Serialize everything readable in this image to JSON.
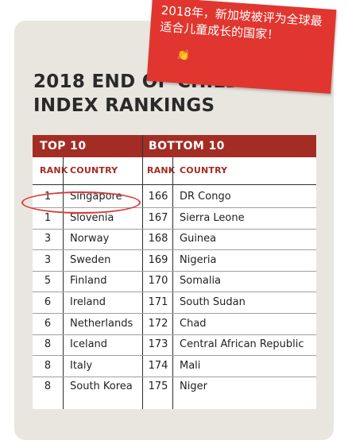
{
  "title_line1": "2018 END OF CHILDHOOD",
  "title_line2": "INDEX RANKINGS",
  "banner": {
    "text": "2018年，新加坡被评为全球最适合儿童成长的国家！",
    "emoji": "👏"
  },
  "sections": {
    "top_label": "TOP 10",
    "bottom_label": "BOTTOM 10"
  },
  "columns": {
    "rank": "RANK",
    "country": "COUNTRY"
  },
  "top10": [
    {
      "rank": "1",
      "country": "Singapore"
    },
    {
      "rank": "1",
      "country": "Slovenia"
    },
    {
      "rank": "3",
      "country": "Norway"
    },
    {
      "rank": "3",
      "country": "Sweden"
    },
    {
      "rank": "5",
      "country": "Finland"
    },
    {
      "rank": "6",
      "country": "Ireland"
    },
    {
      "rank": "6",
      "country": "Netherlands"
    },
    {
      "rank": "8",
      "country": "Iceland"
    },
    {
      "rank": "8",
      "country": "Italy"
    },
    {
      "rank": "8",
      "country": "South Korea"
    }
  ],
  "bottom10": [
    {
      "rank": "166",
      "country": "DR Congo"
    },
    {
      "rank": "167",
      "country": "Sierra Leone"
    },
    {
      "rank": "168",
      "country": "Guinea"
    },
    {
      "rank": "169",
      "country": "Nigeria"
    },
    {
      "rank": "170",
      "country": "Somalia"
    },
    {
      "rank": "171",
      "country": "South Sudan"
    },
    {
      "rank": "172",
      "country": "Chad"
    },
    {
      "rank": "173",
      "country": "Central African Republic"
    },
    {
      "rank": "174",
      "country": "Mali"
    },
    {
      "rank": "175",
      "country": "Niger"
    }
  ],
  "colors": {
    "header_red": "#a32d24",
    "banner_red": "#e0362f",
    "highlight_circle": "#d93a3a"
  }
}
